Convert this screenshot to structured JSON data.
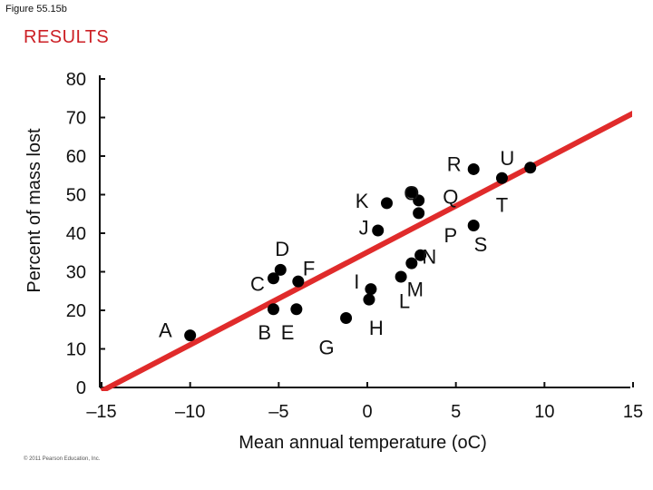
{
  "figure_label": "Figure 55.15b",
  "heading": "RESULTS",
  "credit": "© 2011 Pearson Education, Inc.",
  "chart_data": {
    "type": "scatter",
    "title": "",
    "xlabel": "Mean annual temperature (oC)",
    "ylabel": "Percent of mass lost",
    "xlim": [
      -15,
      15
    ],
    "ylim": [
      0,
      80
    ],
    "x_ticks": [
      -15,
      -10,
      -5,
      0,
      5,
      10,
      15
    ],
    "x_tick_labels": [
      "–15",
      "–10",
      "–5",
      "0",
      "5",
      "10",
      "15"
    ],
    "y_ticks": [
      0,
      10,
      20,
      30,
      40,
      50,
      60,
      70,
      80
    ],
    "y_tick_labels": [
      "0",
      "10",
      "20",
      "30",
      "40",
      "50",
      "60",
      "70",
      "80"
    ],
    "grid": false,
    "points": [
      {
        "x": -10.0,
        "y": 13.5
      },
      {
        "x": -5.3,
        "y": 20.3
      },
      {
        "x": -4.0,
        "y": 20.3
      },
      {
        "x": -5.3,
        "y": 28.3
      },
      {
        "x": -4.9,
        "y": 30.5
      },
      {
        "x": -3.9,
        "y": 27.5
      },
      {
        "x": -1.2,
        "y": 18.0
      },
      {
        "x": 0.2,
        "y": 25.5
      },
      {
        "x": 0.1,
        "y": 22.8
      },
      {
        "x": 0.6,
        "y": 40.7
      },
      {
        "x": 1.1,
        "y": 47.8
      },
      {
        "x": 1.9,
        "y": 28.7
      },
      {
        "x": 2.5,
        "y": 32.2
      },
      {
        "x": 3.0,
        "y": 34.3
      },
      {
        "x": 2.5,
        "y": 50.6
      },
      {
        "x": 2.9,
        "y": 48.5
      },
      {
        "x": 2.9,
        "y": 45.2
      },
      {
        "x": 6.0,
        "y": 42.0
      },
      {
        "x": 6.0,
        "y": 56.6
      },
      {
        "x": 7.6,
        "y": 54.3
      },
      {
        "x": 9.2,
        "y": 57.0
      }
    ],
    "annotations": [
      {
        "text": "A",
        "x": -11.4,
        "y": 15.0
      },
      {
        "text": "B",
        "x": -5.8,
        "y": 14.3
      },
      {
        "text": "E",
        "x": -4.5,
        "y": 14.3
      },
      {
        "text": "C",
        "x": -6.2,
        "y": 27.0
      },
      {
        "text": "D",
        "x": -4.8,
        "y": 36.0
      },
      {
        "text": "F",
        "x": -3.3,
        "y": 31.0
      },
      {
        "text": "G",
        "x": -2.3,
        "y": 10.5
      },
      {
        "text": "H",
        "x": 0.5,
        "y": 15.5
      },
      {
        "text": "I",
        "x": -0.6,
        "y": 27.5
      },
      {
        "text": "J",
        "x": -0.2,
        "y": 41.5
      },
      {
        "text": "K",
        "x": -0.3,
        "y": 48.5
      },
      {
        "text": "L",
        "x": 2.1,
        "y": 22.5
      },
      {
        "text": "M",
        "x": 2.7,
        "y": 25.5
      },
      {
        "text": "N",
        "x": 3.5,
        "y": 34.0
      },
      {
        "text": "O",
        "x": 2.5,
        "y": 50.5
      },
      {
        "text": "P",
        "x": 4.7,
        "y": 39.5
      },
      {
        "text": "Q",
        "x": 4.7,
        "y": 49.5
      },
      {
        "text": "R",
        "x": 4.9,
        "y": 58.0
      },
      {
        "text": "S",
        "x": 6.4,
        "y": 37.2
      },
      {
        "text": "T",
        "x": 7.6,
        "y": 47.4
      },
      {
        "text": "U",
        "x": 7.9,
        "y": 59.5
      }
    ],
    "fit_line": {
      "x": [
        -15,
        16
      ],
      "y": [
        0,
        73.5
      ],
      "color": "#e02b2b"
    },
    "colors": {
      "points": "#000000",
      "fit_line": "#e02b2b",
      "axis": "#111111",
      "heading": "#cc1f24"
    }
  }
}
